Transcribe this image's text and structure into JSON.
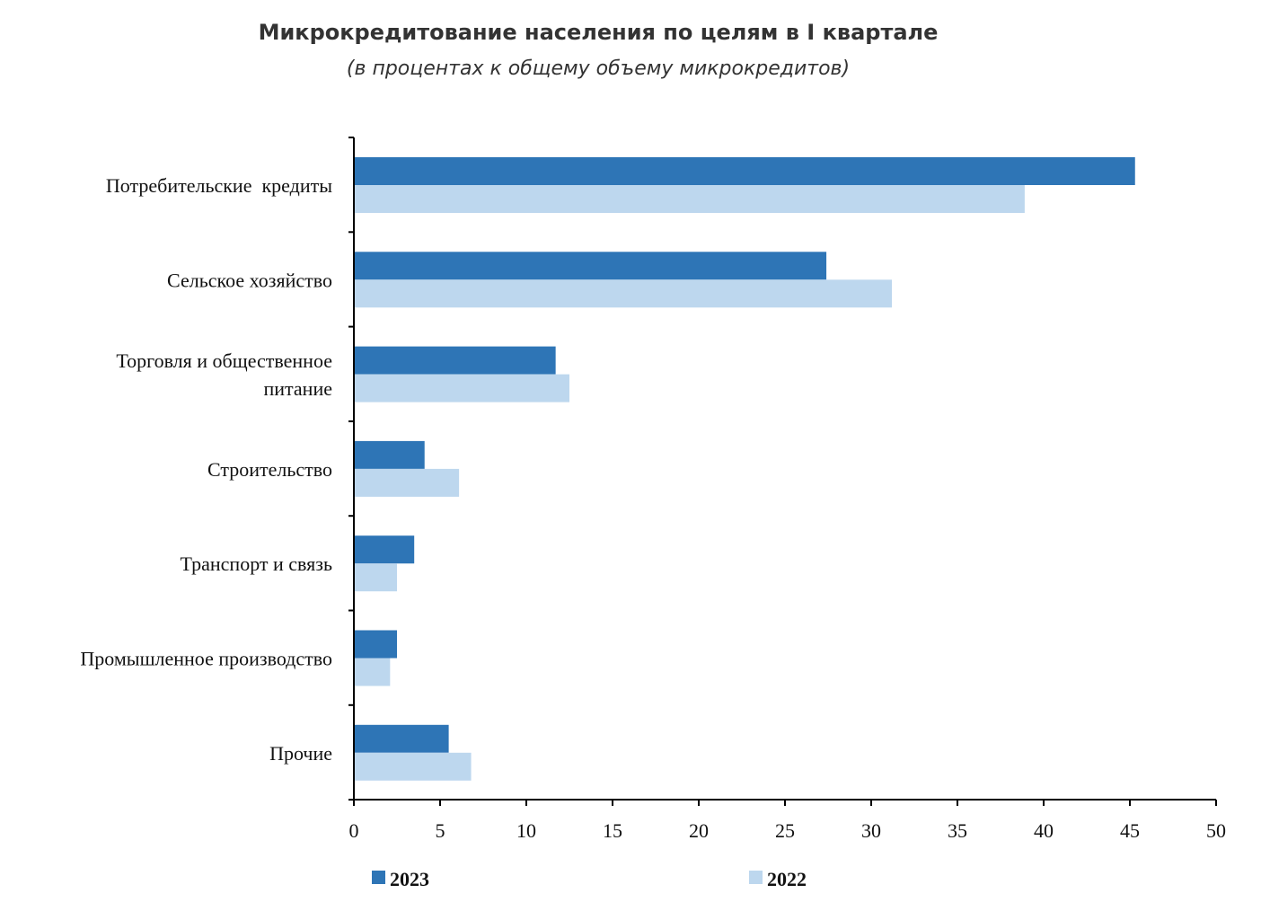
{
  "chart_data": {
    "type": "bar",
    "orientation": "horizontal",
    "title": "Микрокредитование населения по целям в I квартале",
    "subtitle": "(в процентах к общему объему микрокредитов)",
    "categories": [
      [
        "Потребительские  кредиты"
      ],
      [
        "Сельское хозяйство"
      ],
      [
        "Торговля и общественное",
        "питание"
      ],
      [
        "Строительство"
      ],
      [
        "Транспорт и связь"
      ],
      [
        "Промышленное производство"
      ],
      [
        "Прочие"
      ]
    ],
    "series": [
      {
        "name": "2023",
        "color": "#2e75b6",
        "values": [
          45.3,
          27.4,
          11.7,
          4.1,
          3.5,
          2.5,
          5.5
        ]
      },
      {
        "name": "2022",
        "color": "#bdd7ee",
        "values": [
          38.9,
          31.2,
          12.5,
          6.1,
          2.5,
          2.1,
          6.8
        ]
      }
    ],
    "xlim": [
      0,
      50
    ],
    "xticks": [
      0,
      5,
      10,
      15,
      20,
      25,
      30,
      35,
      40,
      45,
      50
    ],
    "legend_position": "bottom",
    "grid": false
  }
}
